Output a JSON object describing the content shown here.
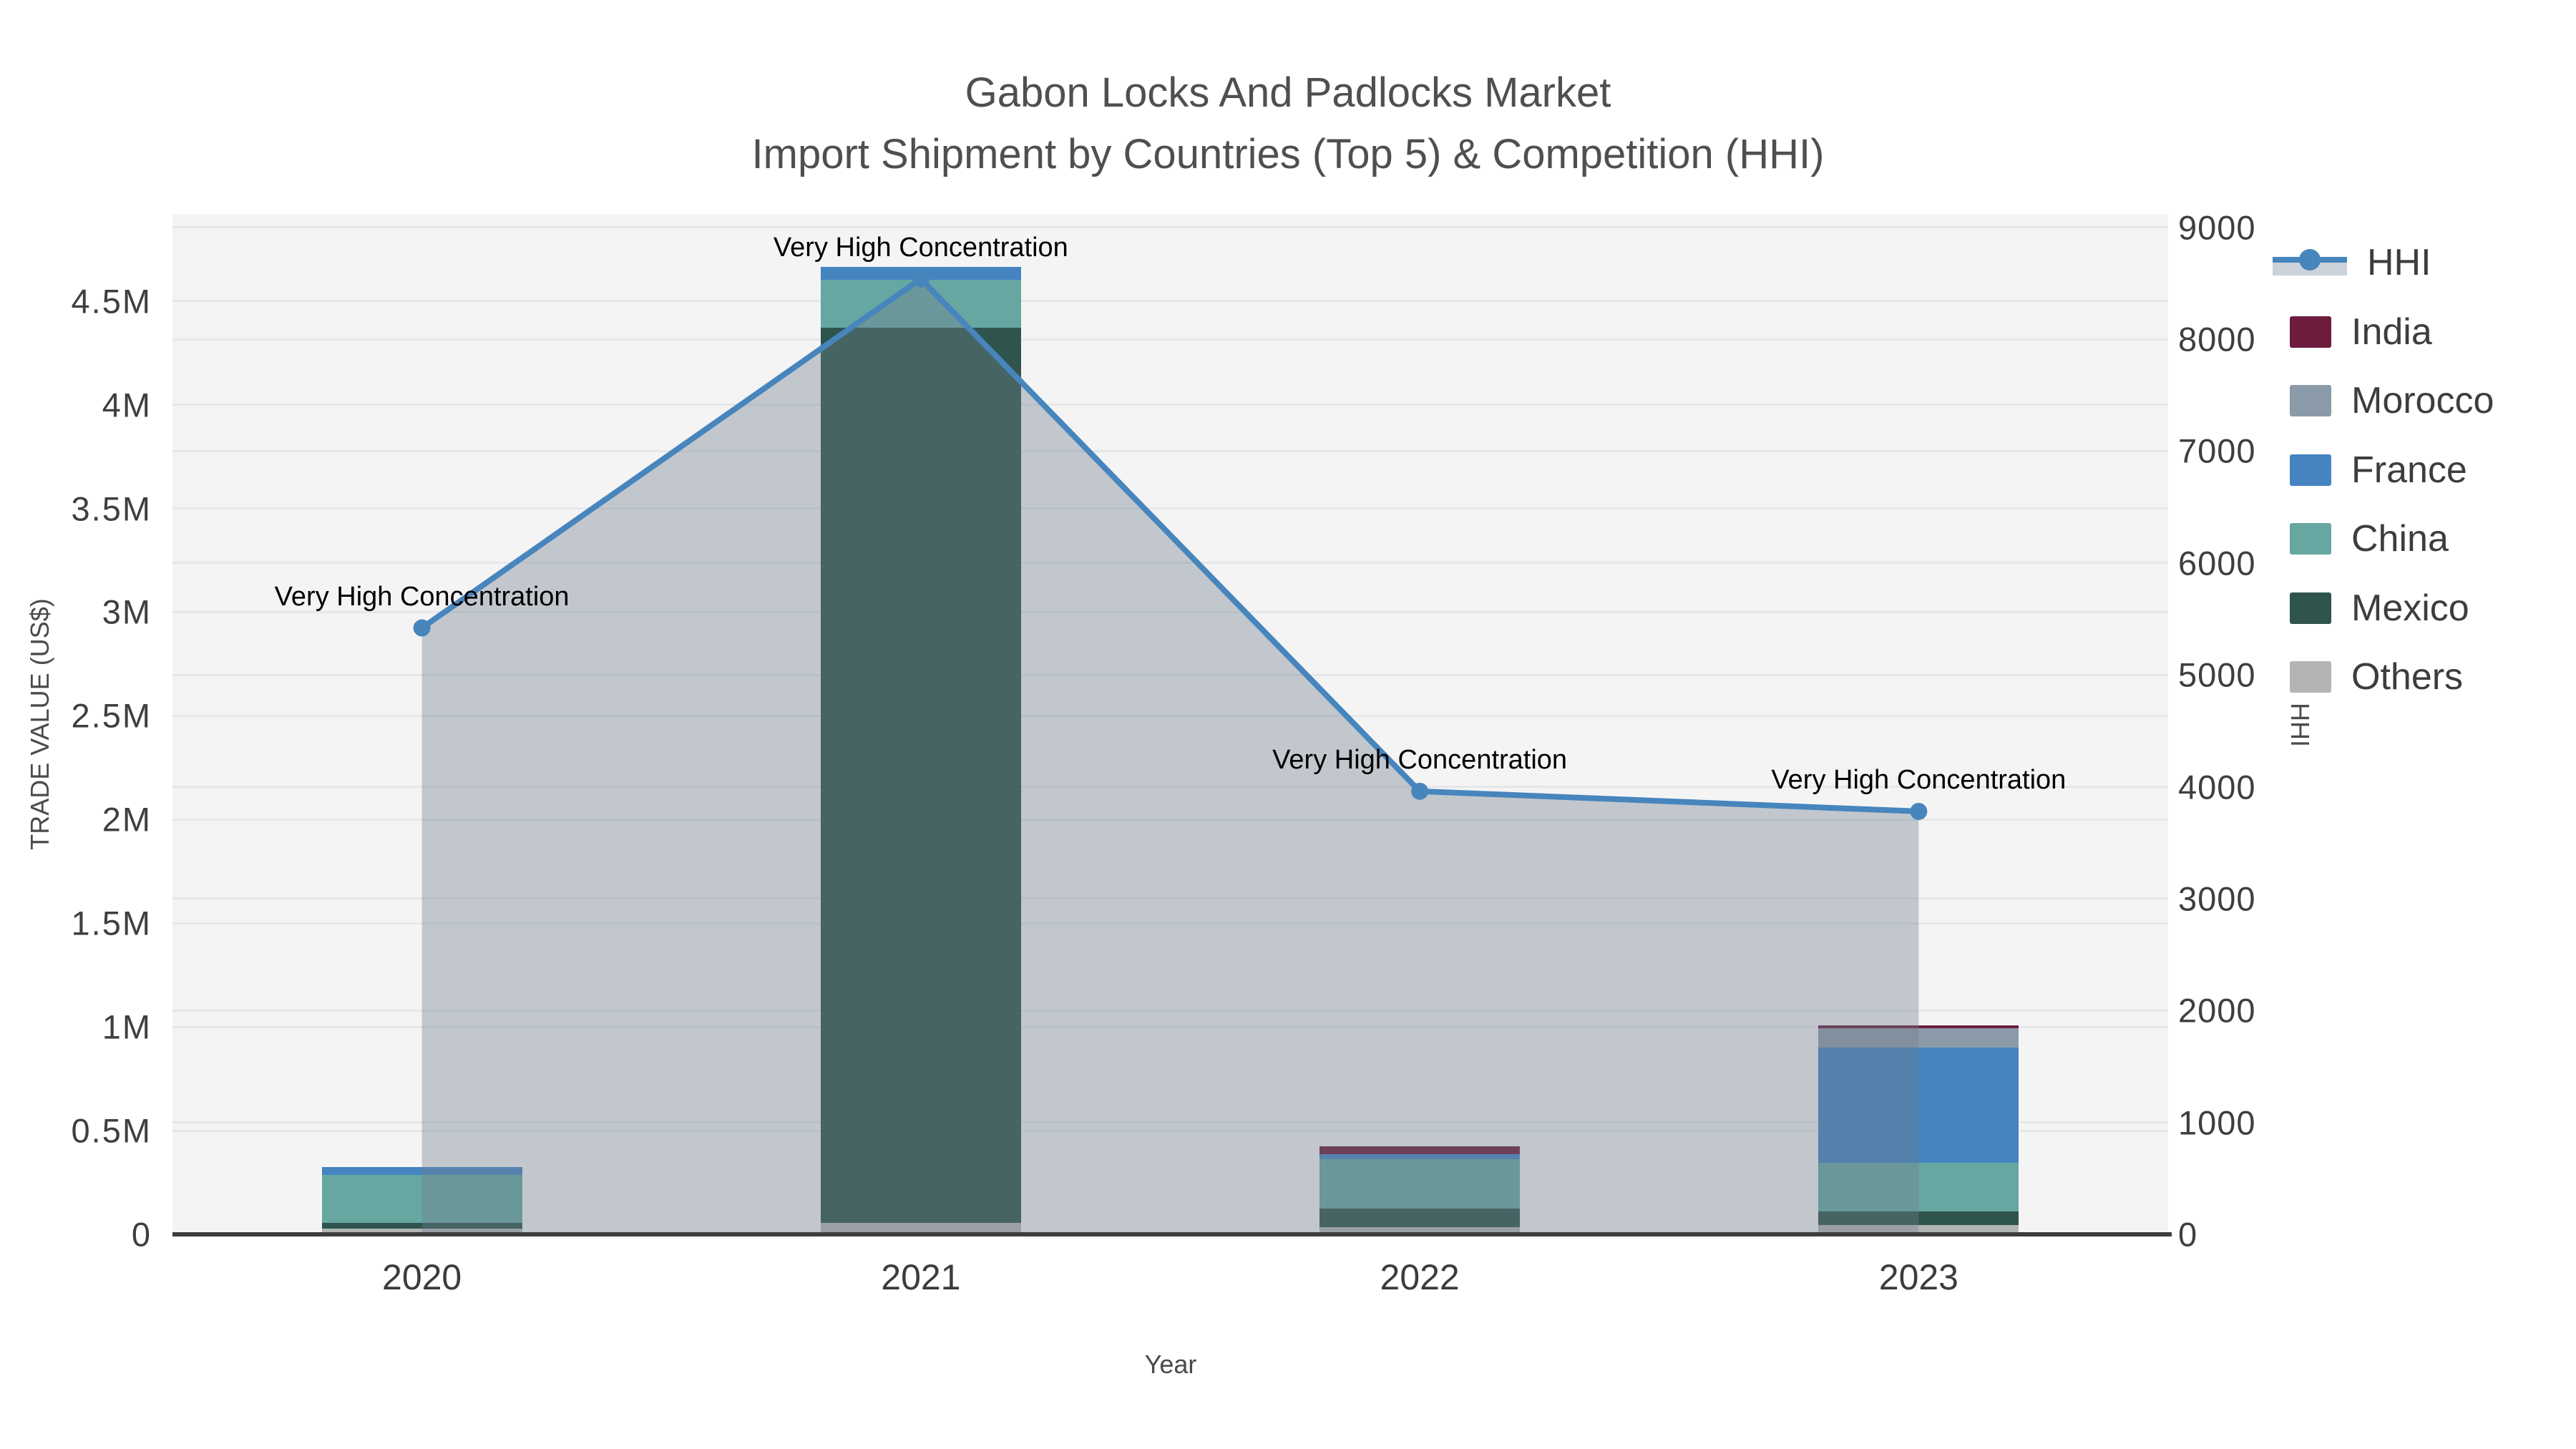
{
  "title": {
    "line1": "Gabon Locks And Padlocks Market",
    "line2": "Import Shipment by Countries (Top 5) & Competition (HHI)"
  },
  "axes": {
    "left": {
      "title": "TRADE VALUE (US$)",
      "tick_labels": [
        "0",
        "0.5M",
        "1M",
        "1.5M",
        "2M",
        "2.5M",
        "3M",
        "3.5M",
        "4M",
        "4.5M"
      ],
      "tick_values": [
        0,
        500000,
        1000000,
        1500000,
        2000000,
        2500000,
        3000000,
        3500000,
        4000000,
        4500000
      ]
    },
    "right": {
      "title": "HHI",
      "tick_labels": [
        "0",
        "1000",
        "2000",
        "3000",
        "4000",
        "5000",
        "6000",
        "7000",
        "8000",
        "9000"
      ],
      "tick_values": [
        0,
        1000,
        2000,
        3000,
        4000,
        5000,
        6000,
        7000,
        8000,
        9000
      ]
    },
    "x": {
      "title": "Year",
      "tick_labels": [
        "2020",
        "2021",
        "2022",
        "2023"
      ]
    }
  },
  "legend": {
    "items": [
      {
        "label": "HHI",
        "type": "line"
      },
      {
        "label": "India",
        "type": "bar"
      },
      {
        "label": "Morocco",
        "type": "bar"
      },
      {
        "label": "France",
        "type": "bar"
      },
      {
        "label": "China",
        "type": "bar"
      },
      {
        "label": "Mexico",
        "type": "bar"
      },
      {
        "label": "Others",
        "type": "bar"
      }
    ]
  },
  "colors": {
    "hhi_line": "#4785bd",
    "hhi_area_fill": "rgba(113,127,143,0.38)",
    "plot_background": "#f4f4f5",
    "gridline": "#e6e7e9",
    "axis_line": "#3d3d3d",
    "annotation_text": "#000000",
    "title_text": "#4f4f4f"
  },
  "chart_data": {
    "type": "bar",
    "subtype": "stacked-bars-with-line",
    "title": "Gabon Locks And Padlocks Market — Import Shipment by Countries (Top 5) & Competition (HHI)",
    "xlabel": "Year",
    "ylabel_left": "TRADE VALUE (US$)",
    "ylabel_right": "HHI",
    "categories": [
      "2020",
      "2021",
      "2022",
      "2023"
    ],
    "ylim_left": [
      0,
      4920000
    ],
    "ylim_right": [
      0,
      9120
    ],
    "grid": true,
    "legend_position": "right",
    "series": [
      {
        "name": "India",
        "type": "bar",
        "color": "#6d1c3d",
        "values": [
          0,
          0,
          38000,
          17000
        ]
      },
      {
        "name": "Morocco",
        "type": "bar",
        "color": "#8b9aa9",
        "values": [
          0,
          0,
          0,
          93000
        ]
      },
      {
        "name": "France",
        "type": "bar",
        "color": "#4583c1",
        "values": [
          40000,
          62000,
          24000,
          555000
        ]
      },
      {
        "name": "China",
        "type": "bar",
        "color": "#66a7a2",
        "values": [
          230000,
          231000,
          238000,
          234000
        ]
      },
      {
        "name": "Mexico",
        "type": "bar",
        "color": "#2e544d",
        "values": [
          28000,
          4317000,
          90000,
          65000
        ]
      },
      {
        "name": "Others",
        "type": "bar",
        "color": "#b3b5b3",
        "values": [
          27000,
          55000,
          34000,
          45000
        ]
      }
    ],
    "line_series": {
      "name": "HHI",
      "type": "line+area",
      "axis": "right",
      "color": "#4785bd",
      "fill_color": "rgba(113,127,143,0.38)",
      "values": [
        5420,
        8540,
        3960,
        3780
      ]
    },
    "annotations": [
      {
        "category": "2020",
        "text": "Very High Concentration"
      },
      {
        "category": "2021",
        "text": "Very High Concentration"
      },
      {
        "category": "2022",
        "text": "Very High Concentration"
      },
      {
        "category": "2023",
        "text": "Very High Concentration"
      }
    ]
  }
}
